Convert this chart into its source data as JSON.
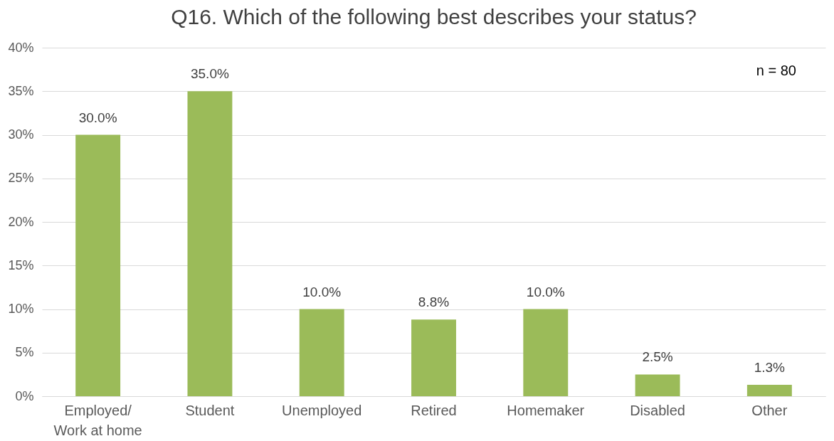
{
  "chart_data": {
    "type": "bar",
    "title": "Q16. Which of the following best describes your status?",
    "categories": [
      "Employed/\nWork at home",
      "Student",
      "Unemployed",
      "Retired",
      "Homemaker",
      "Disabled",
      "Other"
    ],
    "values": [
      30.0,
      35.0,
      10.0,
      8.8,
      10.0,
      2.5,
      1.3
    ],
    "value_labels": [
      "30.0%",
      "35.0%",
      "10.0%",
      "8.8%",
      "10.0%",
      "2.5%",
      "1.3%"
    ],
    "color": "#9bbb59",
    "ylim": [
      0,
      40
    ],
    "yticks": [
      {
        "value": 0,
        "label": "0%"
      },
      {
        "value": 5,
        "label": "5%"
      },
      {
        "value": 10,
        "label": "10%"
      },
      {
        "value": 15,
        "label": "15%"
      },
      {
        "value": 20,
        "label": "20%"
      },
      {
        "value": 25,
        "label": "25%"
      },
      {
        "value": 30,
        "label": "30%"
      },
      {
        "value": 35,
        "label": "35%"
      },
      {
        "value": 40,
        "label": "40%"
      }
    ],
    "grid": "y",
    "annotations": [
      "n = 80"
    ]
  }
}
